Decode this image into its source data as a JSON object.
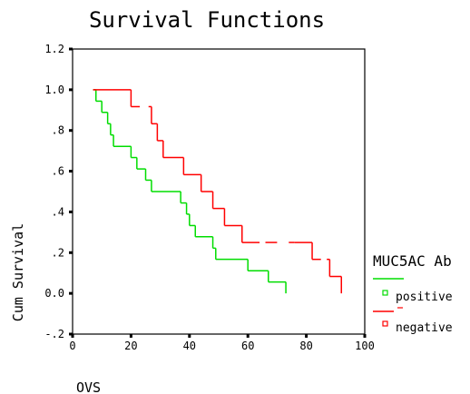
{
  "chart_data": {
    "type": "line",
    "title": "Survival Functions",
    "xlabel": "OVS",
    "ylabel": "Cum Survival",
    "xlim": [
      0,
      100
    ],
    "ylim": [
      -0.2,
      1.2
    ],
    "x_ticks": [
      0,
      20,
      40,
      60,
      80,
      100
    ],
    "x_tick_labels": [
      "0",
      "20",
      "40",
      "60",
      "80",
      "100"
    ],
    "y_ticks": [
      -0.2,
      0.0,
      0.2,
      0.4,
      0.6,
      0.8,
      1.0,
      1.2
    ],
    "y_tick_labels": [
      "-.2",
      "0.0",
      ".2",
      ".4",
      ".6",
      ".8",
      "1.0",
      "1.2"
    ],
    "legend": {
      "title": "MUC5AC Ab",
      "placement": "right",
      "entries": [
        {
          "name": "positive",
          "color": "#00dd00"
        },
        {
          "name": "negative",
          "color": "#ff0000"
        }
      ]
    },
    "series": [
      {
        "name": "positive",
        "color": "#00dd00",
        "step": true,
        "points": [
          [
            7,
            1.0
          ],
          [
            8,
            0.944
          ],
          [
            10,
            0.889
          ],
          [
            12,
            0.833
          ],
          [
            13,
            0.778
          ],
          [
            14,
            0.722
          ],
          [
            20,
            0.667
          ],
          [
            22,
            0.611
          ],
          [
            25,
            0.556
          ],
          [
            27,
            0.5
          ],
          [
            37,
            0.444
          ],
          [
            39,
            0.389
          ],
          [
            40,
            0.333
          ],
          [
            42,
            0.278
          ],
          [
            48,
            0.222
          ],
          [
            49,
            0.167
          ],
          [
            60,
            0.111
          ],
          [
            67,
            0.056
          ],
          [
            73,
            0.0
          ]
        ]
      },
      {
        "name": "negative",
        "color": "#ff0000",
        "step": true,
        "points": [
          [
            7,
            1.0
          ],
          [
            20,
            0.917
          ],
          [
            27,
            0.833
          ],
          [
            29,
            0.75
          ],
          [
            31,
            0.667
          ],
          [
            38,
            0.583
          ],
          [
            44,
            0.5
          ],
          [
            48,
            0.417
          ],
          [
            52,
            0.333
          ],
          [
            58,
            0.25
          ],
          [
            76,
            0.25
          ],
          [
            82,
            0.167
          ],
          [
            88,
            0.083
          ],
          [
            92,
            0.0
          ]
        ],
        "gaps": [
          [
            23,
            26
          ],
          [
            64,
            66
          ],
          [
            70,
            74
          ],
          [
            85,
            87
          ]
        ]
      }
    ]
  }
}
